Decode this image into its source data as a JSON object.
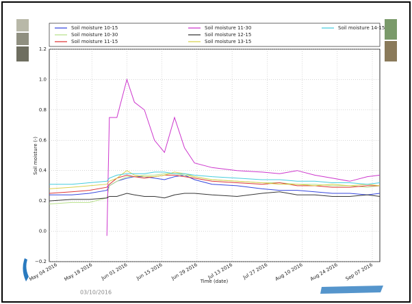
{
  "chart_data": {
    "type": "line",
    "x_label": "Time (date)",
    "y_label": "Soil moisture (-)",
    "footer": "03/10/2016",
    "x": [
      "2016-05-01",
      "2016-05-10",
      "2016-05-17",
      "2016-05-24",
      "2016-05-25",
      "2016-05-28",
      "2016-06-01",
      "2016-06-04",
      "2016-06-08",
      "2016-06-12",
      "2016-06-16",
      "2016-06-20",
      "2016-06-24",
      "2016-06-28",
      "2016-07-05",
      "2016-07-15",
      "2016-07-25",
      "2016-08-01",
      "2016-08-08",
      "2016-08-15",
      "2016-08-22",
      "2016-08-29",
      "2016-09-05",
      "2016-09-10"
    ],
    "xlim": [
      "2016-05-01",
      "2016-09-10"
    ],
    "xticks": [
      {
        "value": "2016-05-04",
        "label": "May 04 2016"
      },
      {
        "value": "2016-05-18",
        "label": "May 18 2016"
      },
      {
        "value": "2016-06-01",
        "label": "Jun 01 2016"
      },
      {
        "value": "2016-06-15",
        "label": "Jun 15 2016"
      },
      {
        "value": "2016-06-29",
        "label": "Jun 29 2016"
      },
      {
        "value": "2016-07-13",
        "label": "Jul 13 2016"
      },
      {
        "value": "2016-07-27",
        "label": "Jul 27 2016"
      },
      {
        "value": "2016-08-10",
        "label": "Aug 10 2016"
      },
      {
        "value": "2016-08-24",
        "label": "Aug 24 2016"
      },
      {
        "value": "2016-09-07",
        "label": "Sep 07 2016"
      }
    ],
    "ylim": [
      -0.2,
      1.2
    ],
    "yticks": [
      {
        "value": -0.2,
        "label": "−0.2"
      },
      {
        "value": 0,
        "label": "0.0"
      },
      0.2,
      0.4,
      0.6,
      0.8,
      {
        "value": 1,
        "label": "1.0"
      },
      1.2
    ],
    "grid": true,
    "series": [
      {
        "name": "Soil moisture 10-15",
        "color": "#3344dd",
        "values": [
          0.24,
          0.24,
          0.25,
          0.27,
          0.3,
          0.33,
          0.35,
          0.36,
          0.36,
          0.35,
          0.34,
          0.36,
          0.37,
          0.34,
          0.31,
          0.3,
          0.28,
          0.27,
          0.27,
          0.26,
          0.25,
          0.25,
          0.24,
          0.25
        ]
      },
      {
        "name": "Soil moisture 10-30",
        "color": "#b8e08a",
        "values": [
          0.18,
          0.19,
          0.19,
          0.22,
          0.3,
          0.33,
          0.36,
          0.36,
          0.37,
          0.37,
          0.38,
          0.38,
          0.37,
          0.36,
          0.34,
          0.33,
          0.32,
          0.32,
          0.31,
          0.31,
          0.3,
          0.3,
          0.29,
          0.3
        ]
      },
      {
        "name": "Soil moisture 11-15",
        "color": "#dd3333",
        "values": [
          0.25,
          0.26,
          0.27,
          0.29,
          0.31,
          0.35,
          0.37,
          0.36,
          0.35,
          0.36,
          0.37,
          0.37,
          0.36,
          0.35,
          0.33,
          0.32,
          0.31,
          0.32,
          0.3,
          0.3,
          0.29,
          0.29,
          0.3,
          0.3
        ]
      },
      {
        "name": "Soil moisture 11-30",
        "color": "#cc33cc",
        "values": [
          null,
          null,
          null,
          -0.03,
          0.75,
          0.75,
          1.0,
          0.85,
          0.8,
          0.6,
          0.52,
          0.75,
          0.55,
          0.45,
          0.42,
          0.4,
          0.39,
          0.38,
          0.4,
          0.37,
          0.35,
          0.33,
          0.36,
          0.37
        ]
      },
      {
        "name": "Soil moisture 12-15",
        "color": "#333333",
        "values": [
          0.2,
          0.21,
          0.21,
          0.22,
          0.23,
          0.23,
          0.25,
          0.24,
          0.23,
          0.23,
          0.22,
          0.24,
          0.25,
          0.25,
          0.24,
          0.23,
          0.25,
          0.26,
          0.24,
          0.24,
          0.23,
          0.23,
          0.24,
          0.23
        ]
      },
      {
        "name": "Soil moisture 13-15",
        "color": "#d8d04a",
        "values": [
          0.28,
          0.29,
          0.3,
          0.31,
          0.33,
          0.35,
          0.4,
          0.37,
          0.36,
          0.36,
          0.37,
          0.39,
          0.38,
          0.36,
          0.34,
          0.33,
          0.32,
          0.31,
          0.31,
          0.3,
          0.31,
          0.3,
          0.31,
          0.3
        ]
      },
      {
        "name": "Soil moisture 14-15",
        "color": "#44ccdd",
        "values": [
          0.31,
          0.31,
          0.32,
          0.33,
          0.35,
          0.37,
          0.38,
          0.38,
          0.38,
          0.39,
          0.39,
          0.38,
          0.38,
          0.37,
          0.36,
          0.35,
          0.34,
          0.34,
          0.33,
          0.33,
          0.32,
          0.32,
          0.31,
          0.32
        ]
      }
    ]
  }
}
